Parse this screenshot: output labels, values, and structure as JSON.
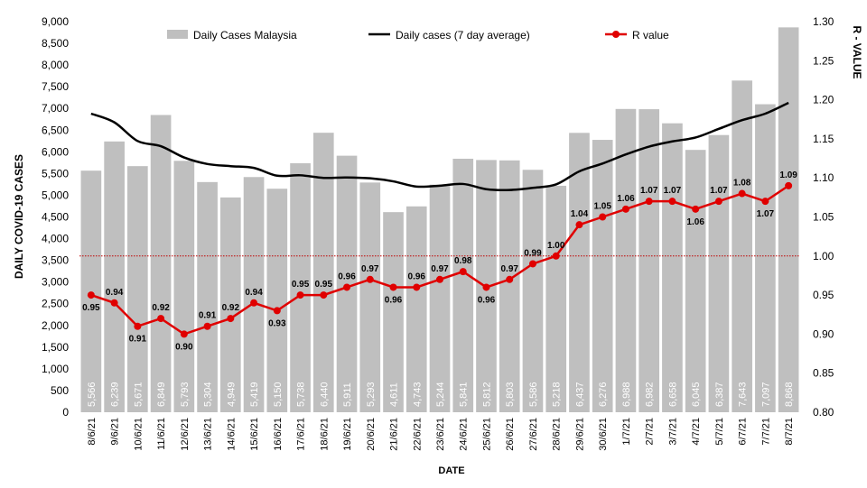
{
  "chart_data": {
    "type": "bar",
    "title": "",
    "xlabel": "DATE",
    "ylabel": "DAILY COVID-19 CASES",
    "y2label": "R - VALUE",
    "ylim": [
      0,
      9000
    ],
    "y2lim": [
      0.8,
      1.3
    ],
    "yticks": [
      "0",
      "500",
      "1,000",
      "1,500",
      "2,000",
      "2,500",
      "3,000",
      "3,500",
      "4,000",
      "4,500",
      "5,000",
      "5,500",
      "6,000",
      "6,500",
      "7,000",
      "7,500",
      "8,000",
      "8,500",
      "9,000"
    ],
    "y2ticks": [
      "0.80",
      "0.85",
      "0.90",
      "0.95",
      "1.00",
      "1.05",
      "1.10",
      "1.15",
      "1.20",
      "1.25",
      "1.30"
    ],
    "reference_line": 1.0,
    "legend_position": "top",
    "categories": [
      "8/6/21",
      "9/6/21",
      "10/6/21",
      "11/6/21",
      "12/6/21",
      "13/6/21",
      "14/6/21",
      "15/6/21",
      "16/6/21",
      "17/6/21",
      "18/6/21",
      "19/6/21",
      "20/6/21",
      "21/6/21",
      "22/6/21",
      "23/6/21",
      "24/6/21",
      "25/6/21",
      "26/6/21",
      "27/6/21",
      "28/6/21",
      "29/6/21",
      "30/6/21",
      "1/7/21",
      "2/7/21",
      "3/7/21",
      "4/7/21",
      "5/7/21",
      "6/7/21",
      "7/7/21",
      "8/7/21"
    ],
    "series": [
      {
        "name": "Daily Cases Malaysia",
        "type": "bar",
        "axis": "left",
        "color": "#bfbfbf",
        "values": [
          5566,
          6239,
          5671,
          6849,
          5793,
          5304,
          4949,
          5419,
          5150,
          5738,
          6440,
          5911,
          5293,
          4611,
          4743,
          5244,
          5841,
          5812,
          5803,
          5586,
          5218,
          6437,
          6276,
          6988,
          6982,
          6658,
          6045,
          6387,
          7643,
          7097,
          8868
        ],
        "labels": [
          "5,566",
          "6,239",
          "5,671",
          "6,849",
          "5,793",
          "5,304",
          "4,949",
          "5,419",
          "5,150",
          "5,738",
          "6,440",
          "5,911",
          "5,293",
          "4,611",
          "4,743",
          "5,244",
          "5,841",
          "5,812",
          "5,803",
          "5,586",
          "5,218",
          "6,437",
          "6,276",
          "6,988",
          "6,982",
          "6,658",
          "6,045",
          "6,387",
          "7,643",
          "7,097",
          "8,868"
        ]
      },
      {
        "name": "Daily cases (7 day average)",
        "type": "line",
        "axis": "left",
        "color": "#000000",
        "values": [
          6880,
          6680,
          6250,
          6130,
          5870,
          5720,
          5670,
          5630,
          5450,
          5460,
          5400,
          5410,
          5390,
          5320,
          5200,
          5220,
          5260,
          5140,
          5120,
          5170,
          5250,
          5550,
          5730,
          5940,
          6120,
          6240,
          6330,
          6530,
          6730,
          6880,
          7130
        ]
      },
      {
        "name": "R value",
        "type": "line",
        "axis": "right",
        "color": "#e00000",
        "values": [
          0.95,
          0.94,
          0.91,
          0.92,
          0.9,
          0.91,
          0.92,
          0.94,
          0.93,
          0.95,
          0.95,
          0.96,
          0.97,
          0.96,
          0.96,
          0.97,
          0.98,
          0.96,
          0.97,
          0.99,
          1.0,
          1.04,
          1.05,
          1.06,
          1.07,
          1.07,
          1.06,
          1.07,
          1.08,
          1.07,
          1.09
        ],
        "labels": [
          "0.95",
          "0.94",
          "0.91",
          "0.92",
          "0.90",
          "0.91",
          "0.92",
          "0.94",
          "0.93",
          "0.95",
          "0.95",
          "0.96",
          "0.97",
          "0.96",
          "0.96",
          "0.97",
          "0.98",
          "0.96",
          "0.97",
          "0.99",
          "1.00",
          "1.04",
          "1.05",
          "1.06",
          "1.07",
          "1.07",
          "1.06",
          "1.07",
          "1.08",
          "1.07",
          "1.09"
        ]
      }
    ]
  }
}
